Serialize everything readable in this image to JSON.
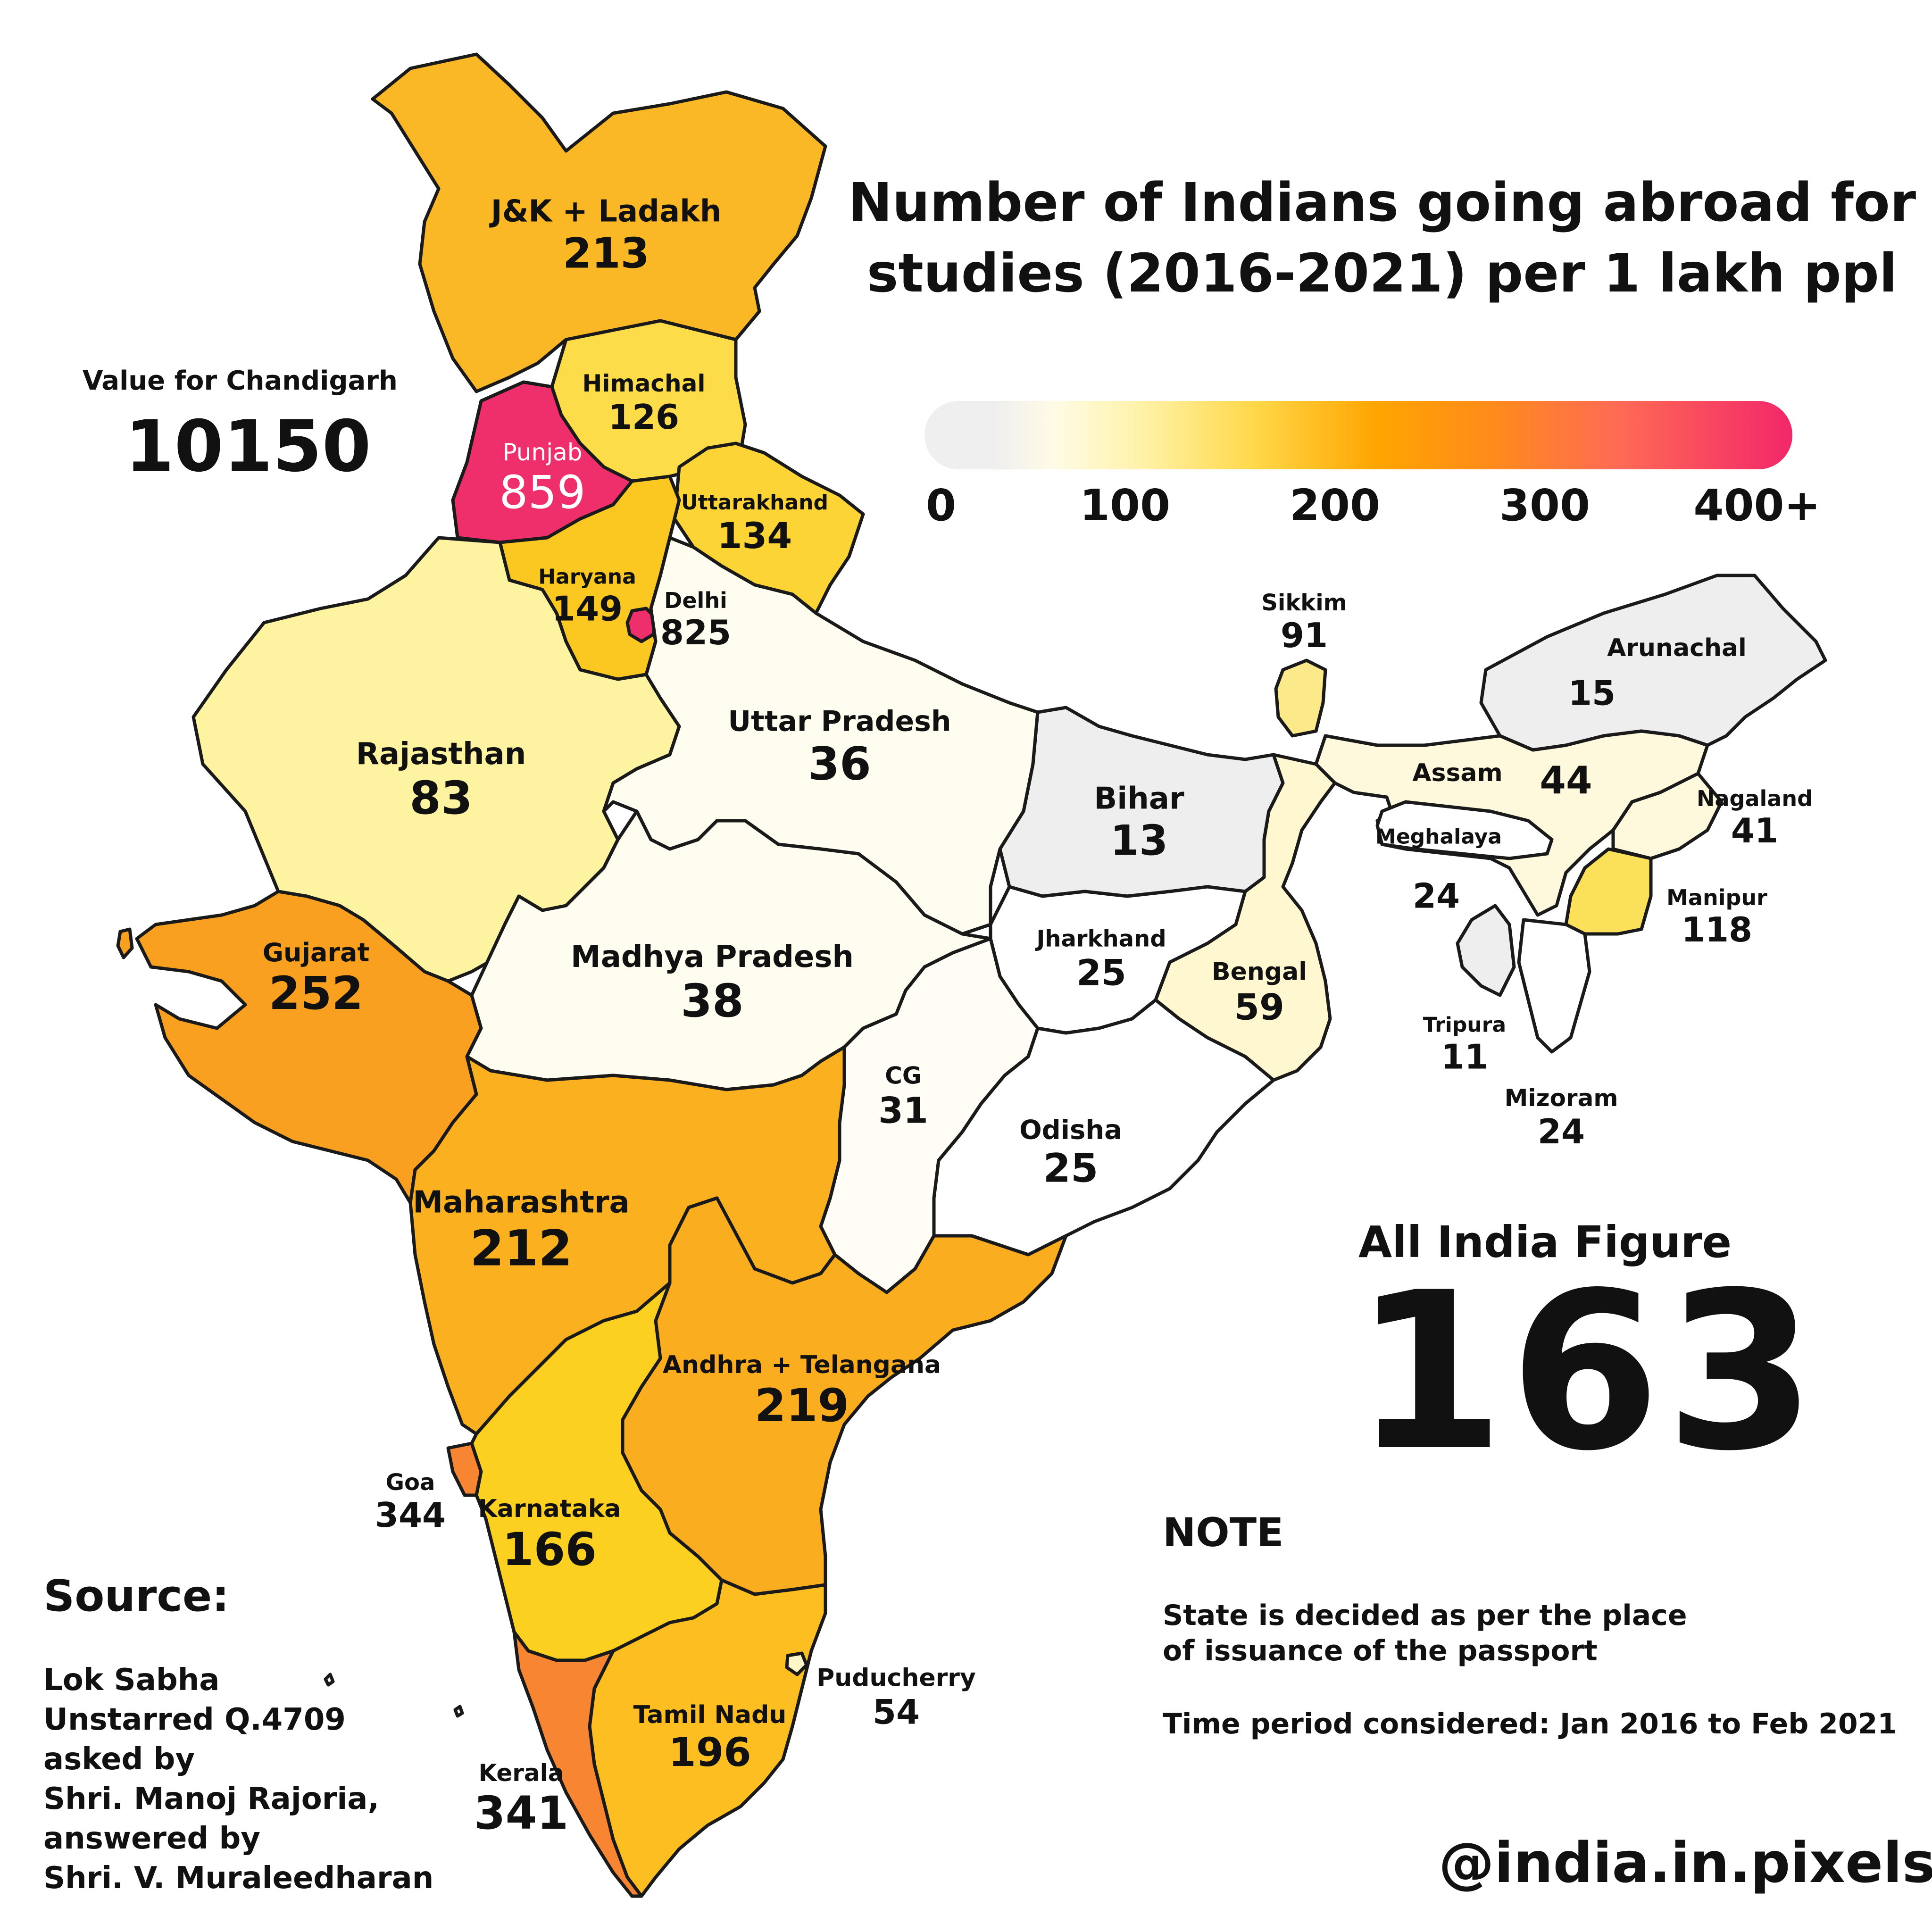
{
  "title": {
    "line1": "Number of Indians going abroad for",
    "line2": "studies (2016-2021) per 1 lakh ppl"
  },
  "legend": {
    "ticks": [
      "0",
      "100",
      "200",
      "300",
      "400+"
    ],
    "colors": [
      "#efefef",
      "#fff2a8",
      "#ffa500",
      "#ff6a55",
      "#f2276a"
    ]
  },
  "chandigarh": {
    "label": "Value for Chandigarh",
    "value": "10150"
  },
  "regions": [
    {
      "name": "J&K + Ladakh",
      "value": "213",
      "color": "#fbb826"
    },
    {
      "name": "Himachal",
      "value": "126",
      "color": "#fcdc48"
    },
    {
      "name": "Punjab",
      "value": "859",
      "color": "#ee2f6c"
    },
    {
      "name": "Uttarakhand",
      "value": "134",
      "color": "#fcd436"
    },
    {
      "name": "Haryana",
      "value": "149",
      "color": "#fbc822"
    },
    {
      "name": "Delhi",
      "value": "825",
      "color": "#ee2f6c"
    },
    {
      "name": "Rajasthan",
      "value": "83",
      "color": "#fdf3a0"
    },
    {
      "name": "Uttar Pradesh",
      "value": "36",
      "color": "#fffdf0"
    },
    {
      "name": "Sikkim",
      "value": "91",
      "color": "#fce98a"
    },
    {
      "name": "Arunachal",
      "value": "15",
      "color": "#eeeeee"
    },
    {
      "name": "Assam",
      "value": "44",
      "color": "#fef9dc"
    },
    {
      "name": "Nagaland",
      "value": "41",
      "color": "#fef9dc"
    },
    {
      "name": "Meghalaya",
      "value": "24",
      "color": "#ffffff"
    },
    {
      "name": "Manipur",
      "value": "118",
      "color": "#fbe15a"
    },
    {
      "name": "Tripura",
      "value": "11",
      "color": "#eeeeee"
    },
    {
      "name": "Mizoram",
      "value": "24",
      "color": "#ffffff"
    },
    {
      "name": "Bihar",
      "value": "13",
      "color": "#eeeeee"
    },
    {
      "name": "Jharkhand",
      "value": "25",
      "color": "#ffffff"
    },
    {
      "name": "Bengal",
      "value": "59",
      "color": "#fef7d0"
    },
    {
      "name": "Gujarat",
      "value": "252",
      "color": "#f9a020"
    },
    {
      "name": "Madhya Pradesh",
      "value": "38",
      "color": "#fffdf0"
    },
    {
      "name": "CG",
      "value": "31",
      "color": "#fffdf5"
    },
    {
      "name": "Odisha",
      "value": "25",
      "color": "#ffffff"
    },
    {
      "name": "Maharashtra",
      "value": "212",
      "color": "#fbb020"
    },
    {
      "name": "Andhra + Telangana",
      "value": "219",
      "color": "#fbad20"
    },
    {
      "name": "Goa",
      "value": "344",
      "color": "#f78532"
    },
    {
      "name": "Karnataka",
      "value": "166",
      "color": "#fcd020"
    },
    {
      "name": "Tamil Nadu",
      "value": "196",
      "color": "#fcbe20"
    },
    {
      "name": "Puducherry",
      "value": "54",
      "color": "#fef5c8"
    },
    {
      "name": "Kerala",
      "value": "341",
      "color": "#f78532"
    }
  ],
  "all_india": {
    "label": "All India Figure",
    "value": "163"
  },
  "note": {
    "heading": "NOTE",
    "line1": "State is decided as per the place",
    "line2": "of issuance of the passport",
    "line3": "Time period considered: Jan 2016 to Feb 2021"
  },
  "source": {
    "heading": "Source:",
    "lines": [
      "Lok Sabha",
      "Unstarred Q.4709",
      "asked by",
      "Shri. Manoj Rajoria,",
      "answered by",
      "Shri. V. Muraleedharan"
    ]
  },
  "credit": "@india.in.pixels"
}
